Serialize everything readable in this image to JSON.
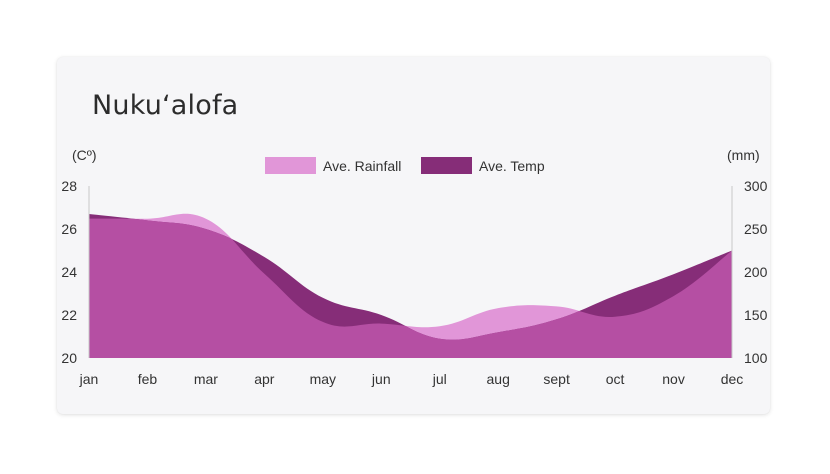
{
  "title": "Nukuʻalofa",
  "chart_data": {
    "type": "area",
    "title": "Nukuʻalofa",
    "categories": [
      "jan",
      "feb",
      "mar",
      "apr",
      "may",
      "jun",
      "jul",
      "aug",
      "sept",
      "oct",
      "nov",
      "dec"
    ],
    "series": [
      {
        "name": "Ave. Rainfall",
        "axis": "right",
        "unit": "(mm)",
        "color": "#e196d8",
        "values": [
          262,
          262,
          262,
          198,
          142,
          140,
          137,
          158,
          160,
          148,
          172,
          225
        ]
      },
      {
        "name": "Ave. Temp",
        "axis": "left",
        "unit": "(Cº)",
        "color": "#862d78",
        "values": [
          26.7,
          26.4,
          26.0,
          24.7,
          22.8,
          22.0,
          20.9,
          21.2,
          21.8,
          22.9,
          23.9,
          25.0
        ]
      }
    ],
    "overlap_color": "#b54fa3",
    "y_left": {
      "label": "(Cº)",
      "ticks": [
        "28",
        "26",
        "24",
        "22",
        "20"
      ],
      "ylim": [
        20,
        28
      ]
    },
    "y_right": {
      "label": "(mm)",
      "ticks": [
        "300",
        "250",
        "200",
        "150",
        "100"
      ],
      "ylim": [
        100,
        300
      ]
    },
    "grid": false,
    "legend_position": "top-center"
  }
}
